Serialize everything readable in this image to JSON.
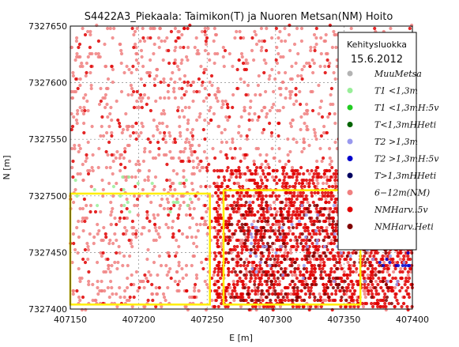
{
  "chart_data": {
    "type": "scatter",
    "title": "S4422A3_Piekaala: Taimikon(T) ja Nuoren Metsan(NM) Hoito",
    "xlabel": "E [m]",
    "ylabel": "N [m]",
    "xlim": [
      407150,
      407400
    ],
    "ylim": [
      7327400,
      7327650
    ],
    "xticks": [
      "407150",
      "407200",
      "407250",
      "407300",
      "407350",
      "407400"
    ],
    "yticks": [
      "7327400",
      "7327450",
      "7327500",
      "7327550",
      "7327600",
      "7327650"
    ],
    "grid": true,
    "legend": {
      "placement": "right",
      "title": "Kehitysluokka",
      "date": "15.6.2012",
      "entries": [
        {
          "label": "MuuMetsa",
          "color": "#b3b3b3"
        },
        {
          "label": "T1 <1,3m",
          "color": "#99ee99"
        },
        {
          "label": "T1 <1,3mH:5v",
          "color": "#22cc22"
        },
        {
          "label": "T<1,3mHHeti",
          "color": "#006400"
        },
        {
          "label": "T2 >1,3m",
          "color": "#9999ee"
        },
        {
          "label": "T2 >1,3mH:5v",
          "color": "#0000cc"
        },
        {
          "label": "T>1,3mHHeti",
          "color": "#000060"
        },
        {
          "label": "6−12m(NM)",
          "color": "#f08080"
        },
        {
          "label": "NMHarv.:5v",
          "color": "#e00000"
        },
        {
          "label": "NMHarv.Heti",
          "color": "#800000"
        }
      ]
    },
    "annotations": [
      {
        "kind": "rectangle",
        "color": "#ffee00",
        "x": [
          407150,
          407252
        ],
        "y": [
          7327404,
          7327502
        ]
      },
      {
        "kind": "rectangle",
        "color": "#ffee00",
        "x": [
          407262,
          407362
        ],
        "y": [
          7327404,
          7327505
        ]
      }
    ],
    "series": [
      {
        "label": "6−12m(NM)",
        "regions": [
          {
            "x": [
              407150,
              407400
            ],
            "y": [
              7327400,
              7327650
            ],
            "density": "medium"
          }
        ]
      },
      {
        "label": "NMHarv.:5v",
        "regions": [
          {
            "x": [
              407255,
              407400
            ],
            "y": [
              7327400,
              7327525
            ],
            "density": "high"
          },
          {
            "x": [
              407150,
              407400
            ],
            "y": [
              7327400,
              7327650
            ],
            "density": "low"
          }
        ]
      },
      {
        "label": "NMHarv.Heti",
        "regions": [
          {
            "x": [
              407265,
              407385
            ],
            "y": [
              7327405,
              7327495
            ],
            "density": "medium"
          }
        ]
      },
      {
        "label": "T1 <1,3m",
        "regions": [
          {
            "x": [
              407150,
              407240
            ],
            "y": [
              7327480,
              7327520
            ],
            "density": "low"
          }
        ]
      },
      {
        "label": "T2 >1,3m",
        "regions": [
          {
            "x": [
              407280,
              407400
            ],
            "y": [
              7327420,
              7327500
            ],
            "density": "low"
          }
        ]
      },
      {
        "label": "T2 >1,3mH:5v",
        "regions": [
          {
            "x": [
              407375,
              407400
            ],
            "y": [
              7327435,
              7327455
            ],
            "density": "medium"
          }
        ]
      }
    ]
  }
}
